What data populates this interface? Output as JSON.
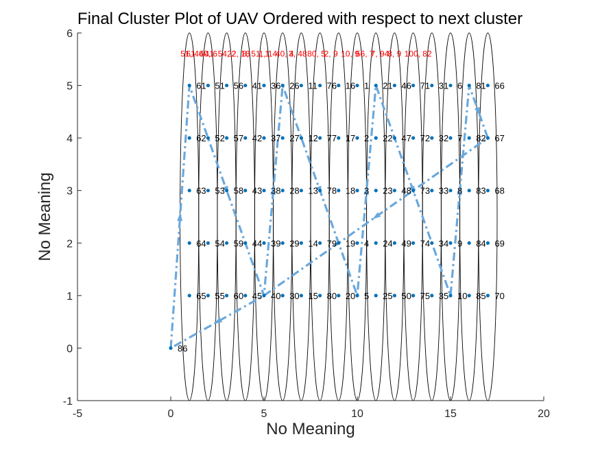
{
  "chart_data": {
    "type": "scatter",
    "title": "Final Cluster Plot of UAV Ordered with respect to next cluster",
    "xlabel": "No Meaning",
    "ylabel": "No Meaning",
    "xlim": [
      -5,
      20
    ],
    "ylim": [
      -1,
      6
    ],
    "xticks": [
      "-5",
      "0",
      "5",
      "10",
      "15",
      "20"
    ],
    "yticks": [
      "-1",
      "0",
      "1",
      "2",
      "3",
      "4",
      "5",
      "6"
    ],
    "grid": false,
    "colors": {
      "points": "#0072bd",
      "path": "#6aa8dc",
      "ellipse": "#000000",
      "header_labels": "#ff0000",
      "axes": "#262626"
    },
    "columns_x": [
      1,
      2,
      3,
      4,
      5,
      6,
      7,
      8,
      9,
      10,
      11,
      12,
      13,
      14,
      15,
      16,
      17
    ],
    "rows_y": [
      5,
      4,
      3,
      2,
      1
    ],
    "point_labels": [
      [
        "61",
        "51",
        "56",
        "41",
        "36",
        "26",
        "11",
        "76",
        "16",
        "1",
        "21",
        "46",
        "71",
        "31",
        "6",
        "81",
        "66"
      ],
      [
        "62",
        "52",
        "57",
        "42",
        "37",
        "27",
        "12",
        "77",
        "17",
        "2",
        "22",
        "47",
        "72",
        "32",
        "7",
        "82",
        "67"
      ],
      [
        "63",
        "53",
        "58",
        "43",
        "38",
        "28",
        "13",
        "78",
        "18",
        "3",
        "23",
        "48",
        "73",
        "33",
        "8",
        "83",
        "68"
      ],
      [
        "64",
        "54",
        "59",
        "44",
        "39",
        "29",
        "14",
        "79",
        "19",
        "4",
        "24",
        "49",
        "74",
        "34",
        "9",
        "84",
        "69"
      ],
      [
        "65",
        "55",
        "60",
        "45",
        "40",
        "30",
        "15",
        "80",
        "20",
        "5",
        "25",
        "50",
        "75",
        "35",
        "10",
        "85",
        "70"
      ]
    ],
    "origin_point": {
      "x": 0,
      "y": 0,
      "label": "86"
    },
    "header_labels_y": 5.6,
    "header_labels": [
      {
        "x": 1,
        "text": "51, 46"
      },
      {
        "x": 1.3,
        "text": "61"
      },
      {
        "x": 2,
        "text": "40, 6"
      },
      {
        "x": 2.3,
        "text": "41"
      },
      {
        "x": 3,
        "text": "54, 2"
      },
      {
        "x": 3.5,
        "text": "22, 18"
      },
      {
        "x": 4.3,
        "text": "8, 51, 1"
      },
      {
        "x": 5.2,
        "text": "1, 14"
      },
      {
        "x": 6.1,
        "text": "40, 4"
      },
      {
        "x": 6.8,
        "text": "3, 48"
      },
      {
        "x": 7.8,
        "text": "80, 5"
      },
      {
        "x": 8.7,
        "text": "2, 9"
      },
      {
        "x": 9.6,
        "text": "10, 9"
      },
      {
        "x": 10.4,
        "text": "56, 7"
      },
      {
        "x": 11.2,
        "text": "7, 94"
      },
      {
        "x": 12.1,
        "text": "8, 9"
      },
      {
        "x": 13,
        "text": "100, 82"
      }
    ],
    "path": [
      {
        "x": 0,
        "y": 0
      },
      {
        "x": 1,
        "y": 5
      },
      {
        "x": 5,
        "y": 1
      },
      {
        "x": 6,
        "y": 5
      },
      {
        "x": 10,
        "y": 1
      },
      {
        "x": 11,
        "y": 5
      },
      {
        "x": 15,
        "y": 1
      },
      {
        "x": 16,
        "y": 5
      },
      {
        "x": 17,
        "y": 4
      },
      {
        "x": 5,
        "y": 1
      },
      {
        "x": 0,
        "y": 0
      }
    ],
    "ellipses": {
      "cy": 2.5,
      "rx": 0.5,
      "ry": 3.5,
      "centers_x": [
        1,
        2,
        3,
        4,
        5,
        6,
        7,
        8,
        9,
        10,
        11,
        12,
        13,
        14,
        15,
        16,
        17
      ]
    }
  }
}
